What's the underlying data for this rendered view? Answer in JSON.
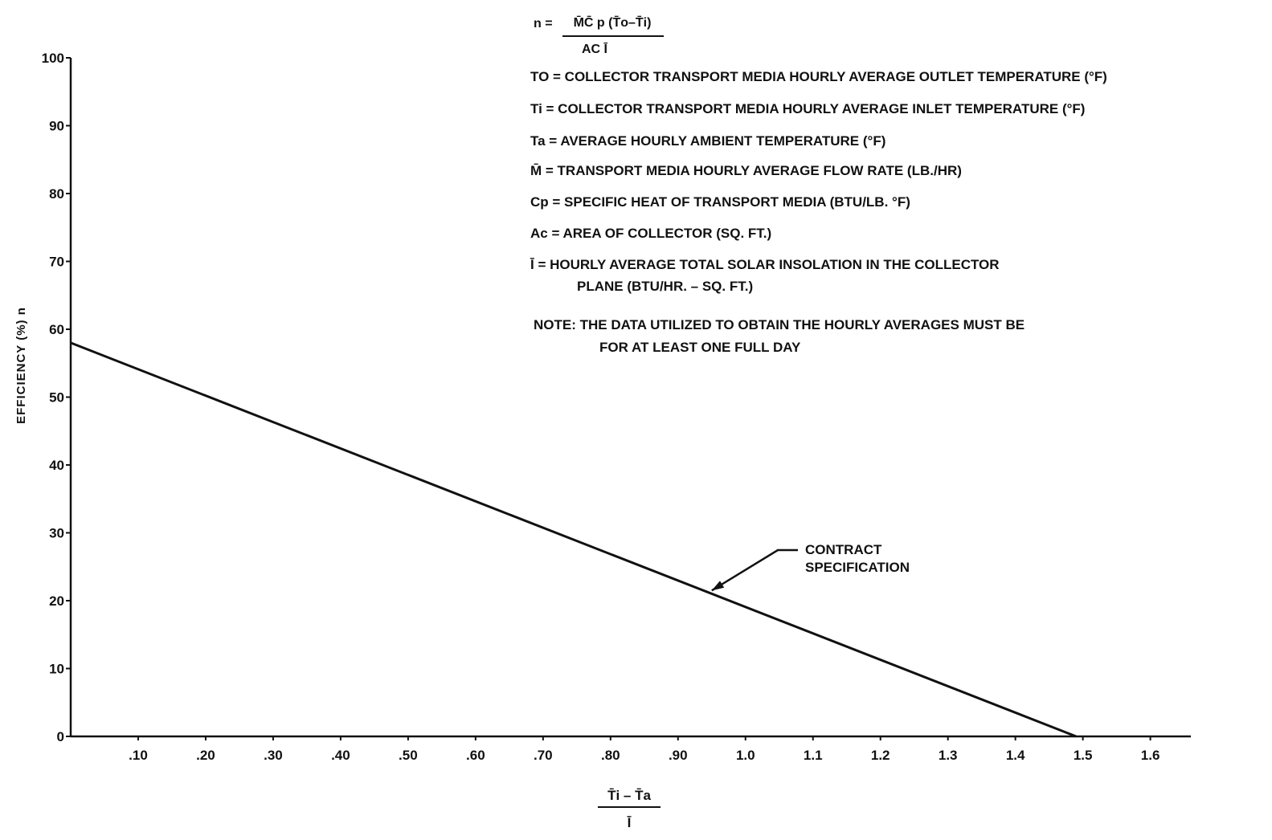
{
  "chart_data": {
    "type": "line",
    "x_ticks": [
      ".10",
      ".20",
      ".30",
      ".40",
      ".50",
      ".60",
      ".70",
      ".80",
      ".90",
      "1.0",
      "1.1",
      "1.2",
      "1.3",
      "1.4",
      "1.5",
      "1.6"
    ],
    "x_tick_values": [
      0.1,
      0.2,
      0.3,
      0.4,
      0.5,
      0.6,
      0.7,
      0.8,
      0.9,
      1.0,
      1.1,
      1.2,
      1.3,
      1.4,
      1.5,
      1.6
    ],
    "y_ticks": [
      "0",
      "10",
      "20",
      "30",
      "40",
      "50",
      "60",
      "70",
      "80",
      "90",
      "100"
    ],
    "y_tick_values": [
      0,
      10,
      20,
      30,
      40,
      50,
      60,
      70,
      80,
      90,
      100
    ],
    "xlim": [
      0,
      1.66
    ],
    "ylim": [
      0,
      100
    ],
    "ylabel": "EFFICIENCY (%) n",
    "xlabel": {
      "numerator": "T̄i – T̄a",
      "denominator": "Ī"
    },
    "series": [
      {
        "name": "CONTRACT SPECIFICATION",
        "x": [
          0,
          1.49
        ],
        "y": [
          58,
          0
        ]
      }
    ],
    "annotation": {
      "lines": [
        "CONTRACT",
        "SPECIFICATION"
      ],
      "points_to": [
        0.95,
        21.5
      ]
    },
    "grid": false,
    "color": "#111111"
  },
  "notes": {
    "formula": {
      "lhs": "n =",
      "numerator": "M̄C̄ p (T̄o–T̄i)",
      "denominator": "AC Ī"
    },
    "definitions": [
      "TO = COLLECTOR TRANSPORT MEDIA HOURLY AVERAGE OUTLET TEMPERATURE (°F)",
      "Ti = COLLECTOR TRANSPORT MEDIA HOURLY AVERAGE INLET TEMPERATURE (°F)",
      "Ta = AVERAGE HOURLY AMBIENT TEMPERATURE (°F)",
      "M̄ = TRANSPORT MEDIA HOURLY AVERAGE FLOW RATE (LB./HR)",
      "Cp = SPECIFIC HEAT OF TRANSPORT MEDIA (BTU/LB. °F)",
      "Ac = AREA OF COLLECTOR (SQ. FT.)",
      "Ī = HOURLY AVERAGE TOTAL SOLAR INSOLATION IN THE COLLECTOR",
      "PLANE (BTU/HR. – SQ. FT.)"
    ],
    "note": [
      "NOTE: THE DATA UTILIZED TO OBTAIN THE HOURLY AVERAGES MUST BE",
      "FOR AT LEAST ONE FULL DAY"
    ]
  }
}
